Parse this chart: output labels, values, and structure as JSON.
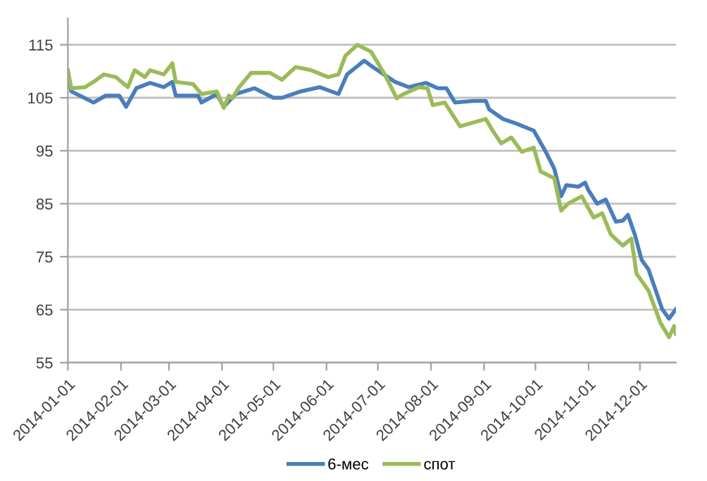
{
  "chart_data": {
    "type": "line",
    "xlim": [
      "2014-01-01",
      "2014-12-22"
    ],
    "ylim": [
      55,
      120
    ],
    "yticks": [
      55,
      65,
      75,
      85,
      95,
      105,
      115
    ],
    "xticks": [
      "2014-01-01",
      "2014-02-01",
      "2014-03-01",
      "2014-04-01",
      "2014-05-01",
      "2014-06-01",
      "2014-07-01",
      "2014-08-01",
      "2014-09-01",
      "2014-10-01",
      "2014-11-01",
      "2014-12-01"
    ],
    "grid": "y",
    "legend": "bottom",
    "marker": "none",
    "line_style": "solid",
    "series": [
      {
        "name": "6-мес",
        "color": "#4a7ebb",
        "x": [
          "2014-01-01",
          "2014-01-03",
          "2014-01-16",
          "2014-01-23",
          "2014-01-31",
          "2014-02-04",
          "2014-02-10",
          "2014-02-18",
          "2014-02-26",
          "2014-03-03",
          "2014-03-05",
          "2014-03-18",
          "2014-03-20",
          "2014-03-29",
          "2014-04-02",
          "2014-04-09",
          "2014-04-20",
          "2014-05-01",
          "2014-05-06",
          "2014-05-17",
          "2014-05-28",
          "2014-06-08",
          "2014-06-13",
          "2014-06-23",
          "2014-06-28",
          "2014-07-11",
          "2014-07-19",
          "2014-07-29",
          "2014-08-05",
          "2014-08-10",
          "2014-08-15",
          "2014-08-26",
          "2014-09-02",
          "2014-09-04",
          "2014-09-12",
          "2014-09-20",
          "2014-09-30",
          "2014-10-07",
          "2014-10-12",
          "2014-10-16",
          "2014-10-19",
          "2014-10-26",
          "2014-10-30",
          "2014-11-01",
          "2014-11-06",
          "2014-11-11",
          "2014-11-17",
          "2014-11-21",
          "2014-11-24",
          "2014-11-28",
          "2014-12-02",
          "2014-12-06",
          "2014-12-14",
          "2014-12-18",
          "2014-12-22"
        ],
        "values": [
          109.4,
          106.2,
          104.1,
          105.4,
          105.4,
          103.3,
          106.8,
          107.8,
          107,
          108,
          105.4,
          105.4,
          104.1,
          105.7,
          103.3,
          105.7,
          106.8,
          105,
          105,
          106.2,
          107,
          105.7,
          109.4,
          112,
          110.8,
          108,
          107,
          107.8,
          106.8,
          106.8,
          104.1,
          104.4,
          104.4,
          102.8,
          101,
          100.1,
          98.8,
          94.8,
          91.6,
          86.4,
          88.5,
          88.2,
          89,
          87.5,
          85,
          85.8,
          81.6,
          81.8,
          82.9,
          79.2,
          74.4,
          72.6,
          65.1,
          63.3,
          65.1
        ]
      },
      {
        "name": "спот",
        "color": "#9bbb59",
        "x": [
          "2014-01-01",
          "2014-01-03",
          "2014-01-11",
          "2014-01-16",
          "2014-01-22",
          "2014-01-29",
          "2014-02-05",
          "2014-02-09",
          "2014-02-15",
          "2014-02-18",
          "2014-02-26",
          "2014-03-03",
          "2014-03-05",
          "2014-03-15",
          "2014-03-20",
          "2014-03-29",
          "2014-04-02",
          "2014-04-05",
          "2014-04-07",
          "2014-04-11",
          "2014-04-18",
          "2014-04-29",
          "2014-05-06",
          "2014-05-14",
          "2014-05-23",
          "2014-06-02",
          "2014-06-08",
          "2014-06-12",
          "2014-06-19",
          "2014-06-27",
          "2014-07-05",
          "2014-07-12",
          "2014-07-16",
          "2014-07-25",
          "2014-07-30",
          "2014-08-02",
          "2014-08-09",
          "2014-08-18",
          "2014-09-02",
          "2014-09-06",
          "2014-09-11",
          "2014-09-17",
          "2014-09-23",
          "2014-09-30",
          "2014-10-04",
          "2014-10-12",
          "2014-10-16",
          "2014-10-20",
          "2014-10-28",
          "2014-11-04",
          "2014-11-09",
          "2014-11-14",
          "2014-11-21",
          "2014-11-26",
          "2014-11-29",
          "2014-12-06",
          "2014-12-13",
          "2014-12-18",
          "2014-12-21",
          "2014-12-22"
        ],
        "values": [
          110.2,
          106.8,
          107,
          108,
          109.4,
          108.9,
          107,
          110.2,
          108.9,
          110.2,
          109.4,
          111.5,
          108,
          107.6,
          105.7,
          106.2,
          103.1,
          105.4,
          104.9,
          107,
          109.7,
          109.7,
          108.4,
          110.8,
          110.2,
          108.9,
          109.4,
          112.9,
          115,
          113.7,
          109.4,
          104.9,
          105.7,
          107,
          106.8,
          103.6,
          104.1,
          99.6,
          101,
          98.8,
          96.4,
          97.5,
          94.8,
          95.6,
          91.1,
          89.8,
          83.7,
          85,
          86.4,
          82.4,
          83.2,
          79.2,
          77.1,
          78.4,
          71.8,
          68.6,
          62.5,
          59.8,
          61.9,
          60.4
        ]
      }
    ]
  }
}
